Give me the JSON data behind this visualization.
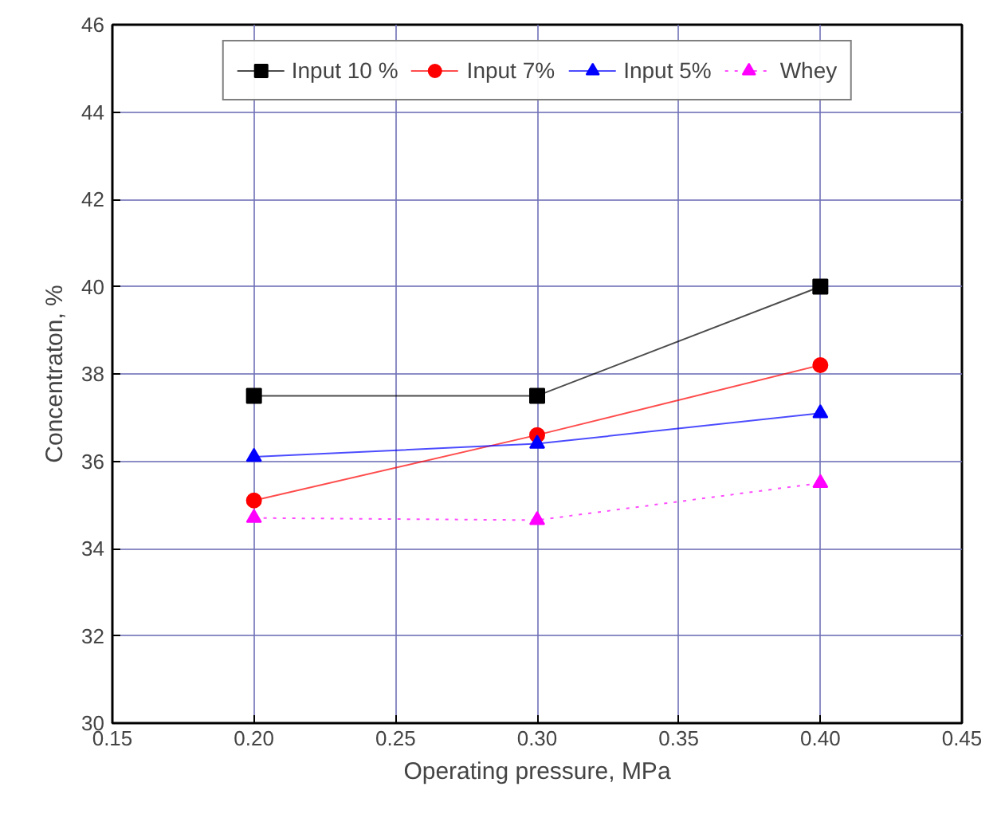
{
  "chart_data": {
    "type": "line",
    "xlabel": "Operating pressure, MPa",
    "ylabel": "Concentraton, %",
    "x": [
      0.2,
      0.3,
      0.4
    ],
    "series": [
      {
        "name": "Input 10 %",
        "color": "#000000",
        "marker": "square",
        "line_style": "solid",
        "values": [
          37.5,
          37.5,
          40.0
        ]
      },
      {
        "name": "Input 7%",
        "color": "#ff0000",
        "marker": "circle",
        "line_style": "solid",
        "values": [
          35.1,
          36.6,
          38.2
        ]
      },
      {
        "name": "Input 5%",
        "color": "#0000ff",
        "marker": "triangle",
        "line_style": "solid",
        "values": [
          36.1,
          36.4,
          37.1
        ]
      },
      {
        "name": "Whey",
        "color": "#ff00ff",
        "marker": "triangle",
        "line_style": "dotted",
        "values": [
          34.7,
          34.65,
          35.5
        ]
      }
    ],
    "xlim": [
      0.15,
      0.45
    ],
    "xticks": [
      {
        "value": 0.15,
        "label": "0.15"
      },
      {
        "value": 0.2,
        "label": "0.20"
      },
      {
        "value": 0.25,
        "label": "0.25"
      },
      {
        "value": 0.3,
        "label": "0.30"
      },
      {
        "value": 0.35,
        "label": "0.35"
      },
      {
        "value": 0.4,
        "label": "0.40"
      },
      {
        "value": 0.45,
        "label": "0.45"
      }
    ],
    "ylim": [
      30,
      46
    ],
    "yticks": [
      30,
      32,
      34,
      36,
      38,
      40,
      42,
      44,
      46
    ],
    "grid": true,
    "legend": "top"
  }
}
